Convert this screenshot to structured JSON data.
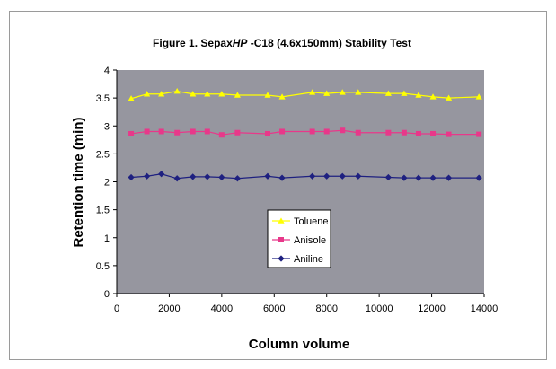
{
  "chart_data": {
    "type": "line",
    "title_parts": [
      "Figure 1. Sepax",
      "HP",
      " -C18 (4.6x150mm) Stability Test"
    ],
    "xlabel": "Column volume",
    "ylabel": "Retention time (min)",
    "xlim": [
      0,
      14000
    ],
    "ylim": [
      0,
      4
    ],
    "xticks": [
      0,
      2000,
      4000,
      6000,
      8000,
      10000,
      12000,
      14000
    ],
    "yticks": [
      0,
      0.5,
      1,
      1.5,
      2,
      2.5,
      3,
      3.5,
      4
    ],
    "xtick_labels": [
      "0",
      "2000",
      "4000",
      "6000",
      "8000",
      "10000",
      "12000",
      "14000"
    ],
    "ytick_labels": [
      "0",
      "0.5",
      "1",
      "1.5",
      "2",
      "2.5",
      "3",
      "3.5",
      "4"
    ],
    "grid": false,
    "legend_position": "center-left",
    "plot_background": "#96969f",
    "series": [
      {
        "name": "Toluene",
        "color": "#ffff00",
        "marker": "triangle",
        "x": [
          550,
          1150,
          1700,
          2300,
          2900,
          3450,
          4000,
          4600,
          5750,
          6300,
          7450,
          8000,
          8600,
          9200,
          10350,
          10950,
          11500,
          12050,
          12650,
          13800
        ],
        "y": [
          3.49,
          3.57,
          3.57,
          3.62,
          3.57,
          3.57,
          3.57,
          3.55,
          3.55,
          3.52,
          3.6,
          3.58,
          3.6,
          3.6,
          3.58,
          3.58,
          3.55,
          3.52,
          3.5,
          3.52
        ]
      },
      {
        "name": "Anisole",
        "color": "#e8388a",
        "marker": "square",
        "x": [
          550,
          1150,
          1700,
          2300,
          2900,
          3450,
          4000,
          4600,
          5750,
          6300,
          7450,
          8000,
          8600,
          9200,
          10350,
          10950,
          11500,
          12050,
          12650,
          13800
        ],
        "y": [
          2.86,
          2.9,
          2.9,
          2.88,
          2.9,
          2.9,
          2.84,
          2.88,
          2.86,
          2.9,
          2.9,
          2.9,
          2.92,
          2.88,
          2.88,
          2.88,
          2.86,
          2.86,
          2.85,
          2.85
        ]
      },
      {
        "name": "Aniline",
        "color": "#1e2080",
        "marker": "diamond",
        "x": [
          550,
          1150,
          1700,
          2300,
          2900,
          3450,
          4000,
          4600,
          5750,
          6300,
          7450,
          8000,
          8600,
          9200,
          10350,
          10950,
          11500,
          12050,
          12650,
          13800
        ],
        "y": [
          2.08,
          2.1,
          2.14,
          2.06,
          2.09,
          2.09,
          2.08,
          2.06,
          2.1,
          2.07,
          2.1,
          2.1,
          2.1,
          2.1,
          2.08,
          2.07,
          2.07,
          2.07,
          2.07,
          2.07
        ]
      }
    ]
  }
}
